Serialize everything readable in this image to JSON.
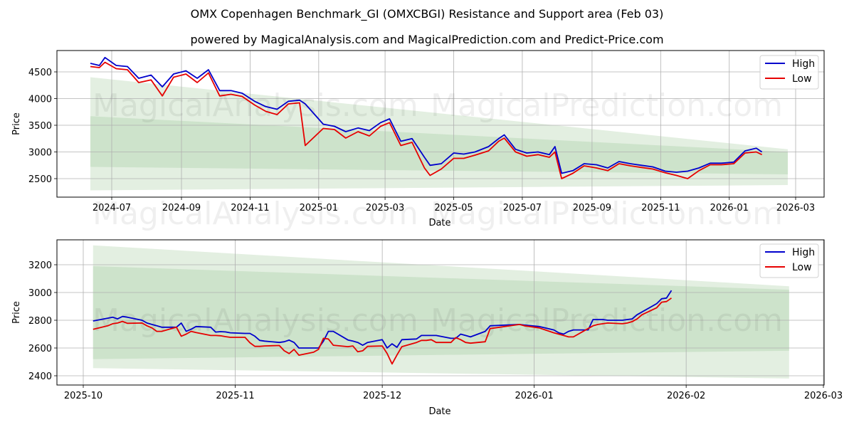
{
  "header": {
    "title": "OMX Copenhagen Benchmark_GI (OMXCBGI) Resistance and Support area (Feb 03)",
    "subtitle": "powered by MagicalAnalysis.com and MagicalPrediction.com and Predict-Price.com"
  },
  "watermarks": [
    "MagicalAnalysis.com",
    "MagicalPrediction.com"
  ],
  "colors": {
    "high": "#0000cc",
    "low": "#e60000",
    "band_outer": "#e3efe1",
    "band_inner": "#cde3cb",
    "grid": "#b0b0b0"
  },
  "chart_data": [
    {
      "type": "line",
      "title": "OMX Copenhagen Benchmark_GI (OMXCBGI) Resistance and Support area (Feb 03)",
      "xlabel": "Date",
      "ylabel": "Price",
      "ylim": [
        2153,
        4900
      ],
      "xticks": [
        "2024-07",
        "2024-09",
        "2024-11",
        "2025-01",
        "2025-03",
        "2025-05",
        "2025-07",
        "2025-09",
        "2025-11",
        "2026-01",
        "2026-03"
      ],
      "yticks": [
        2500,
        3000,
        3500,
        4000,
        4500
      ],
      "grid": true,
      "legend": {
        "position": "upper right",
        "entries": [
          "High",
          "Low"
        ]
      },
      "bands": {
        "x_start": "2024-06-12",
        "x_end": "2026-02-22",
        "outer_top": [
          4400,
          3050
        ],
        "inner_top": [
          3670,
          3000
        ],
        "inner_bottom": [
          2720,
          2580
        ],
        "outer_bottom": [
          2280,
          2380
        ]
      },
      "series": [
        {
          "name": "High",
          "x": [
            "2024-06-12",
            "2024-06-20",
            "2024-06-25",
            "2024-07-05",
            "2024-07-15",
            "2024-07-25",
            "2024-08-05",
            "2024-08-15",
            "2024-08-25",
            "2024-09-05",
            "2024-09-15",
            "2024-09-25",
            "2024-10-05",
            "2024-10-15",
            "2024-10-25",
            "2024-11-05",
            "2024-11-15",
            "2024-11-25",
            "2024-12-05",
            "2024-12-15",
            "2024-12-20",
            "2025-01-05",
            "2025-01-15",
            "2025-01-25",
            "2025-02-05",
            "2025-02-15",
            "2025-02-25",
            "2025-03-05",
            "2025-03-15",
            "2025-03-25",
            "2025-04-05",
            "2025-04-10",
            "2025-04-20",
            "2025-05-01",
            "2025-05-10",
            "2025-05-20",
            "2025-06-01",
            "2025-06-10",
            "2025-06-15",
            "2025-06-25",
            "2025-07-05",
            "2025-07-15",
            "2025-07-25",
            "2025-07-30",
            "2025-08-05",
            "2025-08-15",
            "2025-08-25",
            "2025-09-05",
            "2025-09-15",
            "2025-09-25",
            "2025-10-05",
            "2025-10-15",
            "2025-10-25",
            "2025-11-05",
            "2025-11-15",
            "2025-11-25",
            "2025-12-05",
            "2025-12-15",
            "2025-12-25",
            "2026-01-05",
            "2026-01-15",
            "2026-01-25",
            "2026-01-30"
          ],
          "values": [
            4660,
            4620,
            4770,
            4620,
            4600,
            4380,
            4440,
            4220,
            4460,
            4520,
            4380,
            4540,
            4150,
            4150,
            4100,
            3950,
            3850,
            3800,
            3950,
            3970,
            3900,
            3520,
            3480,
            3380,
            3450,
            3400,
            3550,
            3620,
            3200,
            3250,
            2900,
            2750,
            2780,
            2980,
            2960,
            3000,
            3100,
            3250,
            3320,
            3050,
            2980,
            3000,
            2950,
            3100,
            2600,
            2650,
            2780,
            2760,
            2700,
            2820,
            2780,
            2750,
            2720,
            2640,
            2620,
            2640,
            2700,
            2790,
            2790,
            2810,
            3020,
            3070,
            3000
          ]
        },
        {
          "name": "Low",
          "x": [
            "2024-06-12",
            "2024-06-20",
            "2024-06-25",
            "2024-07-05",
            "2024-07-15",
            "2024-07-25",
            "2024-08-05",
            "2024-08-15",
            "2024-08-25",
            "2024-09-05",
            "2024-09-15",
            "2024-09-25",
            "2024-10-05",
            "2024-10-15",
            "2024-10-25",
            "2024-11-05",
            "2024-11-15",
            "2024-11-25",
            "2024-12-05",
            "2024-12-15",
            "2024-12-20",
            "2025-01-05",
            "2025-01-15",
            "2025-01-25",
            "2025-02-05",
            "2025-02-15",
            "2025-02-25",
            "2025-03-05",
            "2025-03-15",
            "2025-03-25",
            "2025-04-05",
            "2025-04-10",
            "2025-04-20",
            "2025-05-01",
            "2025-05-10",
            "2025-05-20",
            "2025-06-01",
            "2025-06-10",
            "2025-06-15",
            "2025-06-25",
            "2025-07-05",
            "2025-07-15",
            "2025-07-25",
            "2025-07-30",
            "2025-08-05",
            "2025-08-15",
            "2025-08-25",
            "2025-09-05",
            "2025-09-15",
            "2025-09-25",
            "2025-10-05",
            "2025-10-15",
            "2025-10-25",
            "2025-11-05",
            "2025-11-15",
            "2025-11-25",
            "2025-12-05",
            "2025-12-15",
            "2025-12-25",
            "2026-01-05",
            "2026-01-15",
            "2026-01-25",
            "2026-01-30"
          ],
          "values": [
            4600,
            4580,
            4680,
            4560,
            4540,
            4300,
            4350,
            4050,
            4400,
            4460,
            4300,
            4480,
            4050,
            4080,
            4040,
            3880,
            3760,
            3700,
            3900,
            3920,
            3120,
            3440,
            3420,
            3260,
            3380,
            3300,
            3480,
            3550,
            3120,
            3180,
            2700,
            2560,
            2680,
            2880,
            2880,
            2940,
            3020,
            3200,
            3260,
            3000,
            2920,
            2950,
            2900,
            3000,
            2500,
            2600,
            2740,
            2700,
            2650,
            2780,
            2740,
            2710,
            2680,
            2610,
            2560,
            2500,
            2650,
            2760,
            2760,
            2780,
            2980,
            3000,
            2950
          ]
        }
      ]
    },
    {
      "type": "line",
      "xlabel": "Date",
      "ylabel": "Price",
      "ylim": [
        2333,
        3379
      ],
      "xticks": [
        "2025-10",
        "2025-11",
        "2025-12",
        "2026-01",
        "2026-02",
        "2026-03"
      ],
      "yticks": [
        2400,
        2600,
        2800,
        3000,
        3200
      ],
      "grid": true,
      "legend": {
        "position": "upper right",
        "entries": [
          "High",
          "Low"
        ]
      },
      "bands": {
        "x_start": "2025-10-03",
        "x_end": "2026-02-22",
        "outer_top": [
          3340,
          3045
        ],
        "inner_top": [
          3190,
          3020
        ],
        "inner_bottom": [
          2520,
          2580
        ],
        "outer_bottom": [
          2455,
          2380
        ]
      },
      "series": [
        {
          "name": "High",
          "x": [
            "2025-10-03",
            "2025-10-06",
            "2025-10-07",
            "2025-10-08",
            "2025-10-09",
            "2025-10-10",
            "2025-10-13",
            "2025-10-14",
            "2025-10-15",
            "2025-10-16",
            "2025-10-17",
            "2025-10-20",
            "2025-10-21",
            "2025-10-22",
            "2025-10-23",
            "2025-10-24",
            "2025-10-27",
            "2025-10-28",
            "2025-10-29",
            "2025-10-30",
            "2025-10-31",
            "2025-11-03",
            "2025-11-04",
            "2025-11-05",
            "2025-11-06",
            "2025-11-07",
            "2025-11-10",
            "2025-11-11",
            "2025-11-12",
            "2025-11-13",
            "2025-11-14",
            "2025-11-17",
            "2025-11-18",
            "2025-11-19",
            "2025-11-20",
            "2025-11-21",
            "2025-11-24",
            "2025-11-25",
            "2025-11-26",
            "2025-11-27",
            "2025-11-28",
            "2025-12-01",
            "2025-12-02",
            "2025-12-03",
            "2025-12-04",
            "2025-12-05",
            "2025-12-08",
            "2025-12-09",
            "2025-12-10",
            "2025-12-11",
            "2025-12-12",
            "2025-12-15",
            "2025-12-16",
            "2025-12-17",
            "2025-12-18",
            "2025-12-19",
            "2025-12-22",
            "2025-12-23",
            "2025-12-29",
            "2025-12-30",
            "2026-01-02",
            "2026-01-05",
            "2026-01-06",
            "2026-01-07",
            "2026-01-08",
            "2026-01-09",
            "2026-01-12",
            "2026-01-13",
            "2026-01-14",
            "2026-01-15",
            "2026-01-16",
            "2026-01-19",
            "2026-01-20",
            "2026-01-21",
            "2026-01-22",
            "2026-01-23",
            "2026-01-26",
            "2026-01-27",
            "2026-01-28",
            "2026-01-29"
          ],
          "values": [
            2795,
            2815,
            2822,
            2810,
            2827,
            2822,
            2800,
            2780,
            2770,
            2760,
            2750,
            2750,
            2780,
            2720,
            2735,
            2755,
            2750,
            2715,
            2718,
            2716,
            2710,
            2705,
            2705,
            2685,
            2655,
            2650,
            2640,
            2645,
            2657,
            2640,
            2600,
            2600,
            2600,
            2650,
            2720,
            2720,
            2658,
            2650,
            2640,
            2620,
            2640,
            2660,
            2600,
            2630,
            2605,
            2660,
            2665,
            2690,
            2690,
            2690,
            2690,
            2670,
            2670,
            2700,
            2690,
            2680,
            2720,
            2760,
            2770,
            2765,
            2755,
            2730,
            2710,
            2700,
            2720,
            2730,
            2730,
            2805,
            2805,
            2805,
            2800,
            2800,
            2805,
            2810,
            2840,
            2860,
            2920,
            2955,
            2960,
            3015
          ]
        },
        {
          "name": "Low",
          "x": [
            "2025-10-03",
            "2025-10-06",
            "2025-10-07",
            "2025-10-08",
            "2025-10-09",
            "2025-10-10",
            "2025-10-13",
            "2025-10-14",
            "2025-10-15",
            "2025-10-16",
            "2025-10-17",
            "2025-10-20",
            "2025-10-21",
            "2025-10-22",
            "2025-10-23",
            "2025-10-24",
            "2025-10-27",
            "2025-10-28",
            "2025-10-29",
            "2025-10-30",
            "2025-10-31",
            "2025-11-03",
            "2025-11-04",
            "2025-11-05",
            "2025-11-06",
            "2025-11-07",
            "2025-11-10",
            "2025-11-11",
            "2025-11-12",
            "2025-11-13",
            "2025-11-14",
            "2025-11-17",
            "2025-11-18",
            "2025-11-19",
            "2025-11-20",
            "2025-11-21",
            "2025-11-24",
            "2025-11-25",
            "2025-11-26",
            "2025-11-27",
            "2025-11-28",
            "2025-12-01",
            "2025-12-02",
            "2025-12-03",
            "2025-12-04",
            "2025-12-05",
            "2025-12-08",
            "2025-12-09",
            "2025-12-10",
            "2025-12-11",
            "2025-12-12",
            "2025-12-15",
            "2025-12-16",
            "2025-12-17",
            "2025-12-18",
            "2025-12-19",
            "2025-12-22",
            "2025-12-23",
            "2025-12-29",
            "2025-12-30",
            "2026-01-02",
            "2026-01-05",
            "2026-01-06",
            "2026-01-07",
            "2026-01-08",
            "2026-01-09",
            "2026-01-12",
            "2026-01-13",
            "2026-01-14",
            "2026-01-15",
            "2026-01-16",
            "2026-01-19",
            "2026-01-20",
            "2026-01-21",
            "2026-01-22",
            "2026-01-23",
            "2026-01-26",
            "2026-01-27",
            "2026-01-28",
            "2026-01-29"
          ],
          "values": [
            2735,
            2760,
            2775,
            2780,
            2792,
            2778,
            2780,
            2760,
            2745,
            2720,
            2720,
            2750,
            2685,
            2700,
            2720,
            2712,
            2690,
            2690,
            2688,
            2682,
            2677,
            2677,
            2638,
            2612,
            2612,
            2615,
            2618,
            2580,
            2560,
            2590,
            2548,
            2570,
            2590,
            2670,
            2665,
            2620,
            2610,
            2615,
            2573,
            2580,
            2612,
            2615,
            2560,
            2485,
            2550,
            2610,
            2640,
            2655,
            2655,
            2660,
            2640,
            2640,
            2675,
            2660,
            2640,
            2635,
            2645,
            2740,
            2770,
            2760,
            2745,
            2710,
            2700,
            2690,
            2680,
            2680,
            2740,
            2760,
            2770,
            2775,
            2780,
            2775,
            2780,
            2790,
            2810,
            2840,
            2890,
            2930,
            2935,
            2960
          ]
        }
      ]
    }
  ]
}
